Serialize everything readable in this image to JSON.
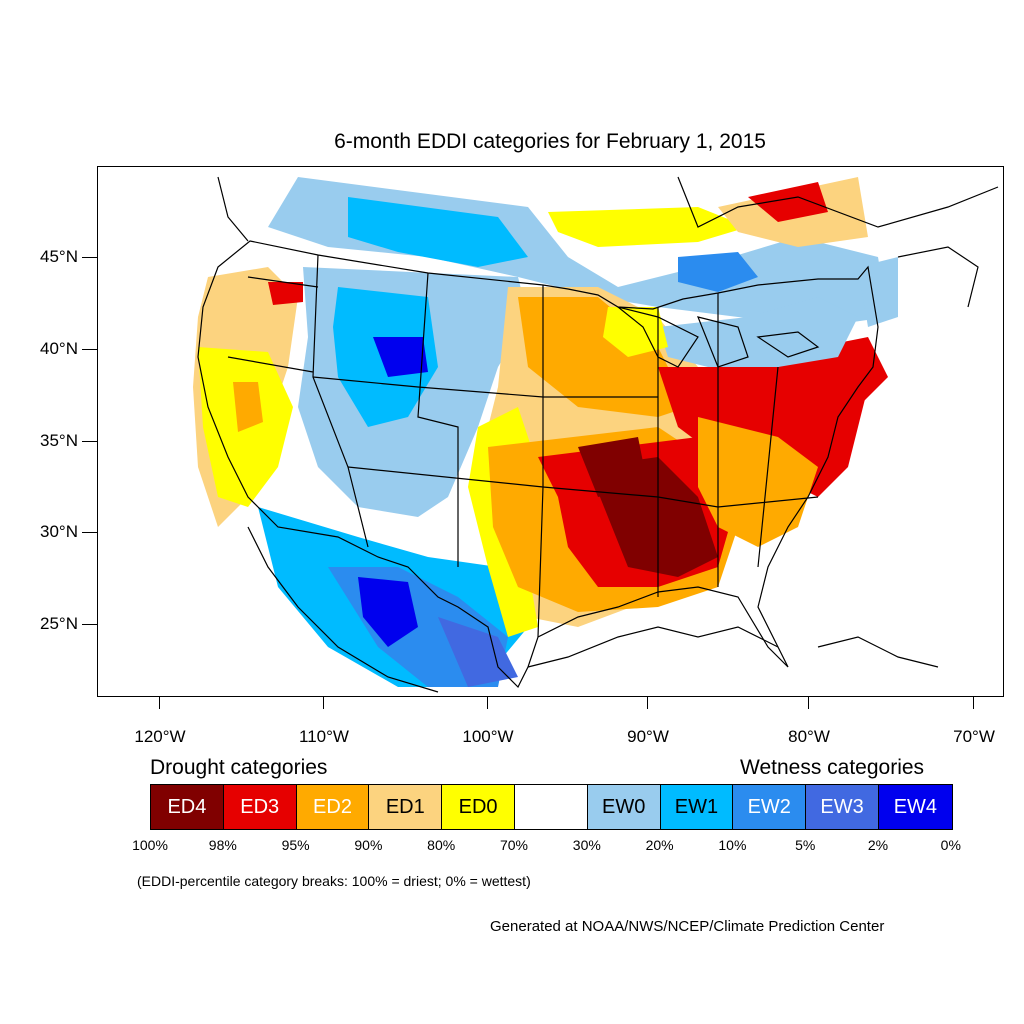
{
  "title": "6-month EDDI categories for February 1, 2015",
  "map": {
    "lat_labels": [
      "45°N",
      "40°N",
      "35°N",
      "30°N",
      "25°N"
    ],
    "lon_labels": [
      "120°W",
      "110°W",
      "100°W",
      "90°W",
      "80°W",
      "70°W"
    ],
    "colors": {
      "ED4": "#800000",
      "ED3": "#e60000",
      "ED2": "#ffaa00",
      "ED1": "#fcd37f",
      "ED0": "#ffff00",
      "NEUTRAL": "#ffffff",
      "EW0": "#99ccee",
      "EW1": "#00bbff",
      "EW2": "#2b8cef",
      "EW3": "#4169e1",
      "EW4": "#0000ee"
    }
  },
  "legend": {
    "drought_heading": "Drought categories",
    "wetness_heading": "Wetness categories",
    "categories": [
      {
        "label": "ED4",
        "color": "#800000",
        "text_color": "#ffffff"
      },
      {
        "label": "ED3",
        "color": "#e60000",
        "text_color": "#ffffff"
      },
      {
        "label": "ED2",
        "color": "#ffaa00",
        "text_color": "#ffffff"
      },
      {
        "label": "ED1",
        "color": "#fcd37f",
        "text_color": "#000000"
      },
      {
        "label": "ED0",
        "color": "#ffff00",
        "text_color": "#000000"
      },
      {
        "label": "",
        "color": "#ffffff",
        "text_color": "#000000"
      },
      {
        "label": "EW0",
        "color": "#99ccee",
        "text_color": "#000000"
      },
      {
        "label": "EW1",
        "color": "#00bbff",
        "text_color": "#000000"
      },
      {
        "label": "EW2",
        "color": "#2b8cef",
        "text_color": "#ffffff"
      },
      {
        "label": "EW3",
        "color": "#4169e1",
        "text_color": "#ffffff"
      },
      {
        "label": "EW4",
        "color": "#0000ee",
        "text_color": "#ffffff"
      }
    ],
    "breaks": [
      "100%",
      "98%",
      "95%",
      "90%",
      "80%",
      "70%",
      "30%",
      "20%",
      "10%",
      "5%",
      "2%",
      "0%"
    ],
    "note": "(EDDI-percentile category breaks: 100% = driest; 0% = wettest)"
  },
  "credit": "Generated at NOAA/NWS/NCEP/Climate Prediction Center"
}
